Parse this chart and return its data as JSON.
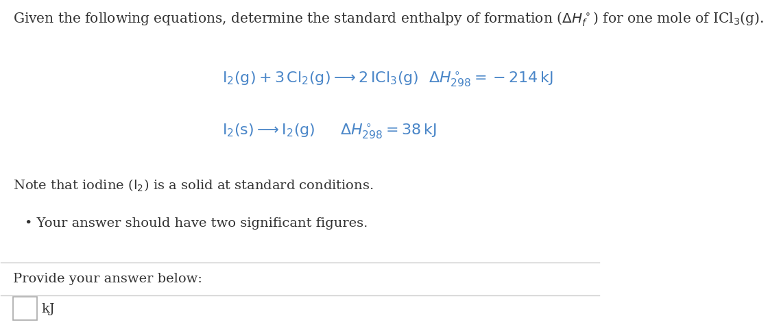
{
  "bg_color": "#ffffff",
  "text_color": "#333333",
  "blue_color": "#4a86c8",
  "title_text": "Given the following equations, determine the standard enthalpy of formation ($\\Delta H_f^\\circ$) for one mole of ICl$_3$(g).",
  "eq1": "$\\mathrm{I_2(g) + 3\\,Cl_2(g) \\longrightarrow 2\\,ICl_3(g)}$",
  "eq1_dh": "$\\Delta H_{298}^\\circ = -214\\,\\mathrm{kJ}$",
  "eq2": "$\\mathrm{I_2(s) \\longrightarrow I_2(g)}$",
  "eq2_dh": "$\\Delta H_{298}^\\circ = 38\\,\\mathrm{kJ}$",
  "note_text": "Note that iodine ($\\mathrm{I_2}$) is a solid at standard conditions.",
  "bullet_text": "Your answer should have two significant figures.",
  "provide_text": "Provide your answer below:",
  "unit_text": "kJ",
  "separator_color": "#cccccc",
  "box_color": "#ffffff",
  "box_edge_color": "#aaaaaa",
  "title_fontsize": 14.5,
  "eq_fontsize": 16,
  "note_fontsize": 14,
  "provide_fontsize": 14
}
